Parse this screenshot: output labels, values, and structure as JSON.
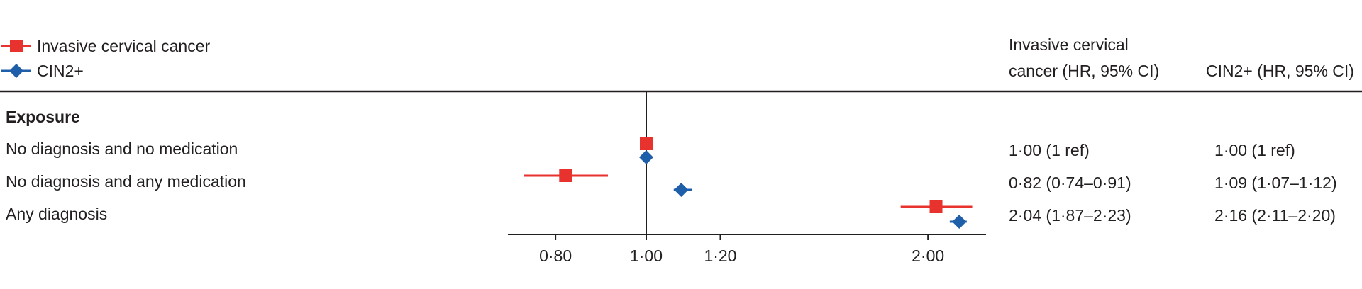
{
  "chart_data": {
    "type": "forest",
    "legend": {
      "position": "top-left",
      "entries": [
        {
          "label": "Invasive cervical cancer",
          "color": "#e8322d",
          "marker": "square-icon"
        },
        {
          "label": "CIN2+",
          "color": "#1f5ea8",
          "marker": "diamond-icon"
        }
      ]
    },
    "columns": [
      {
        "header": [
          "Invasive cervical",
          "cancer (HR, 95% CI)"
        ]
      },
      {
        "header": [
          "CIN2+ (HR, 95% CI)"
        ]
      }
    ],
    "section_heading": "Exposure",
    "rows": [
      {
        "label": "No diagnosis and no medication",
        "cells": [
          "1·00 (1 ref)",
          "1·00 (1 ref)"
        ]
      },
      {
        "label": "No diagnosis and any medication",
        "cells": [
          "0·82 (0·74–0·91)",
          "1·09 (1·07–1·12)"
        ]
      },
      {
        "label": "Any diagnosis",
        "cells": [
          "2·04 (1·87–2·23)",
          "2·16 (2·11–2·20)"
        ]
      }
    ],
    "series": [
      {
        "name": "Invasive cervical cancer",
        "color": "#e8322d",
        "marker": "square",
        "points": [
          {
            "hr": 1.0,
            "lo": 1.0,
            "hi": 1.0
          },
          {
            "hr": 0.82,
            "lo": 0.74,
            "hi": 0.91
          },
          {
            "hr": 2.04,
            "lo": 1.87,
            "hi": 2.23
          }
        ]
      },
      {
        "name": "CIN2+",
        "color": "#1f5ea8",
        "marker": "diamond",
        "points": [
          {
            "hr": 1.0,
            "lo": 1.0,
            "hi": 1.0
          },
          {
            "hr": 1.09,
            "lo": 1.07,
            "hi": 1.12
          },
          {
            "hr": 2.16,
            "lo": 2.11,
            "hi": 2.2
          }
        ]
      }
    ],
    "x_axis": {
      "scale": "log",
      "range": [
        0.7,
        2.35
      ],
      "ticks": [
        0.8,
        1.0,
        1.2,
        2.0
      ],
      "tick_labels": [
        "0·80",
        "1·00",
        "1·20",
        "2·00"
      ],
      "reference_value": 1.0
    }
  }
}
